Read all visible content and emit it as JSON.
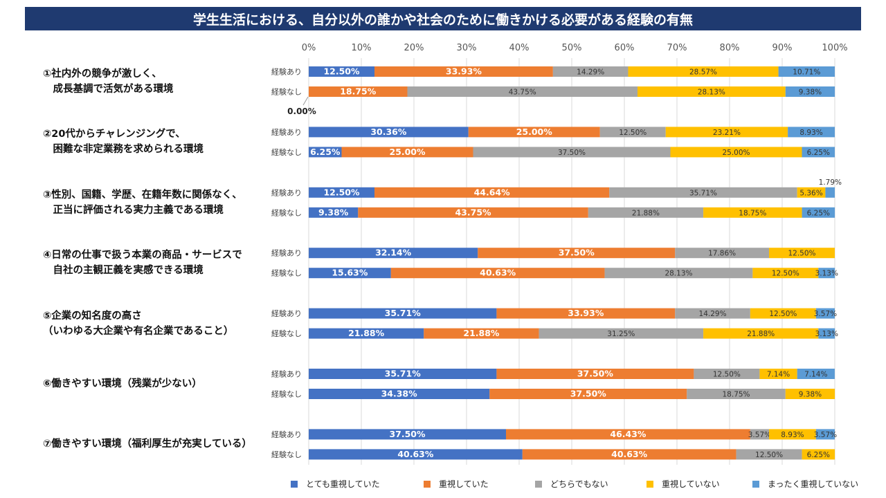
{
  "title": "学生生活における、自分以外の誰かや社会のために働きかける必要がある経験の有無",
  "chart_data": {
    "type": "bar",
    "orientation": "horizontal",
    "stacked": "percent",
    "xlim": [
      0,
      100
    ],
    "x_ticks": [
      "0%",
      "10%",
      "20%",
      "30%",
      "40%",
      "50%",
      "60%",
      "70%",
      "80%",
      "90%",
      "100%"
    ],
    "series_names": [
      "とても重視していた",
      "重視していた",
      "どちらでもない",
      "重視していない",
      "まったく重視していない"
    ],
    "colors": [
      "#4472c4",
      "#ed7d31",
      "#a5a5a5",
      "#ffc000",
      "#5b9bd5"
    ],
    "row_labels": [
      "経験あり",
      "経験なし"
    ],
    "groups": [
      {
        "label": [
          "①社内外の競争が激しく、",
          "　成長基調で活気がある環境"
        ],
        "rows": [
          {
            "values": [
              12.5,
              33.93,
              14.29,
              28.57,
              10.71
            ]
          },
          {
            "values": [
              0.0,
              18.75,
              43.75,
              28.13,
              9.38
            ]
          }
        ]
      },
      {
        "label": [
          "②20代からチャレンジングで、",
          "　困難な非定業務を求められる環境"
        ],
        "rows": [
          {
            "values": [
              30.36,
              25.0,
              12.5,
              23.21,
              8.93
            ]
          },
          {
            "values": [
              6.25,
              25.0,
              37.5,
              25.0,
              6.25
            ]
          }
        ]
      },
      {
        "label": [
          "③性別、国籍、学歴、在籍年数に関係なく、",
          "　正当に評価される実力主義である環境"
        ],
        "rows": [
          {
            "values": [
              12.5,
              44.64,
              35.71,
              5.36,
              1.79
            ]
          },
          {
            "values": [
              9.38,
              43.75,
              21.88,
              18.75,
              6.25
            ]
          }
        ]
      },
      {
        "label": [
          "④日常の仕事で扱う本業の商品・サービスで",
          "　自社の主観正義を実感できる環境"
        ],
        "rows": [
          {
            "values": [
              32.14,
              37.5,
              17.86,
              12.5,
              0
            ]
          },
          {
            "values": [
              15.63,
              40.63,
              28.13,
              12.5,
              3.13
            ]
          }
        ]
      },
      {
        "label": [
          "⑤企業の知名度の高さ",
          "（いわゆる大企業や有名企業であること）"
        ],
        "rows": [
          {
            "values": [
              35.71,
              33.93,
              14.29,
              12.5,
              3.57
            ]
          },
          {
            "values": [
              21.88,
              21.88,
              31.25,
              21.88,
              3.13
            ]
          }
        ]
      },
      {
        "label": [
          "⑥働きやすい環境（残業が少ない）"
        ],
        "rows": [
          {
            "values": [
              35.71,
              37.5,
              12.5,
              7.14,
              7.14
            ]
          },
          {
            "values": [
              34.38,
              37.5,
              18.75,
              9.38,
              0
            ]
          }
        ]
      },
      {
        "label": [
          "⑦働きやすい環境（福利厚生が充実している）"
        ],
        "rows": [
          {
            "values": [
              37.5,
              46.43,
              3.57,
              8.93,
              3.57
            ]
          },
          {
            "values": [
              40.63,
              40.63,
              12.5,
              6.25,
              0
            ]
          }
        ]
      }
    ]
  }
}
